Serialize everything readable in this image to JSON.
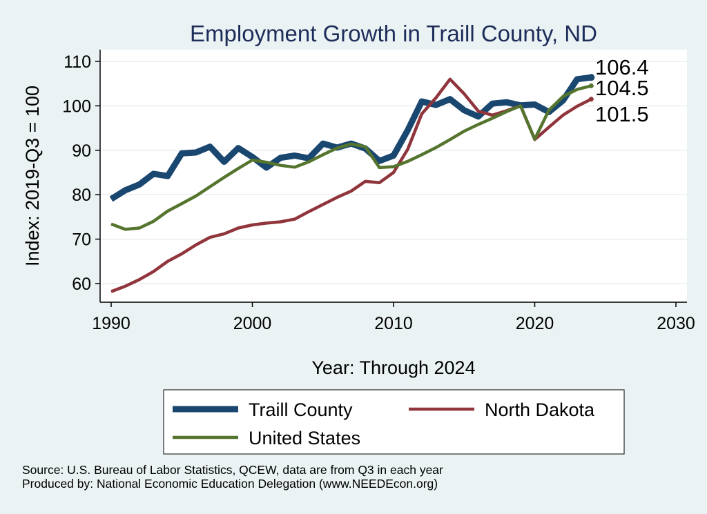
{
  "chart_data": {
    "type": "line",
    "title": "Employment Growth in Traill County, ND",
    "xlabel": "Year: Through 2024",
    "ylabel": "Index: 2019-Q3 = 100",
    "xlim": [
      1990,
      2030
    ],
    "ylim": [
      56,
      112
    ],
    "xticks": [
      1990,
      2000,
      2010,
      2020,
      2030
    ],
    "yticks": [
      60,
      70,
      80,
      90,
      100,
      110
    ],
    "grid": "horizontal",
    "legend_position": "bottom",
    "x": [
      1990,
      1991,
      1992,
      1993,
      1994,
      1995,
      1996,
      1997,
      1998,
      1999,
      2000,
      2001,
      2002,
      2003,
      2004,
      2005,
      2006,
      2007,
      2008,
      2009,
      2010,
      2011,
      2012,
      2013,
      2014,
      2015,
      2016,
      2017,
      2018,
      2019,
      2020,
      2021,
      2022,
      2023,
      2024
    ],
    "series": [
      {
        "name": "Traill  County",
        "color": "#1a476f",
        "values": [
          79.0,
          81.0,
          82.3,
          84.7,
          84.2,
          89.3,
          89.5,
          90.8,
          87.4,
          90.5,
          88.5,
          86.1,
          88.3,
          88.8,
          88.2,
          91.5,
          90.6,
          91.5,
          90.4,
          87.6,
          88.8,
          94.5,
          101.0,
          100.2,
          101.5,
          99.0,
          97.6,
          100.5,
          100.8,
          100.1,
          100.3,
          98.6,
          101.2,
          106.0,
          106.4
        ],
        "end_label": "106.4"
      },
      {
        "name": "North Dakota",
        "color": "#90353b",
        "values": [
          58.2,
          59.4,
          60.9,
          62.7,
          65.0,
          66.7,
          68.7,
          70.4,
          71.2,
          72.5,
          73.2,
          73.6,
          73.9,
          74.5,
          76.2,
          77.8,
          79.4,
          80.8,
          83.0,
          82.7,
          85.0,
          90.2,
          98.2,
          101.8,
          106.0,
          102.7,
          98.8,
          97.9,
          98.9,
          100.0,
          92.4,
          95.2,
          97.9,
          99.9,
          101.5
        ],
        "end_label": "101.5"
      },
      {
        "name": "United States",
        "color": "#55752f",
        "values": [
          73.4,
          72.2,
          72.5,
          74.0,
          76.3,
          78.0,
          79.7,
          81.8,
          83.9,
          85.9,
          87.8,
          87.3,
          86.6,
          86.2,
          87.4,
          89.0,
          90.5,
          91.4,
          90.8,
          86.1,
          86.3,
          87.5,
          89.0,
          90.6,
          92.4,
          94.3,
          95.8,
          97.2,
          98.7,
          100.0,
          92.5,
          99.0,
          102.1,
          103.7,
          104.5
        ],
        "end_label": "104.5"
      }
    ]
  },
  "footer": {
    "source": "Source: U.S. Bureau of Labor Statistics, QCEW, data are from Q3 in each year",
    "produced": "Produced by: National Economic Education Delegation (www.NEEDEcon.org)"
  }
}
